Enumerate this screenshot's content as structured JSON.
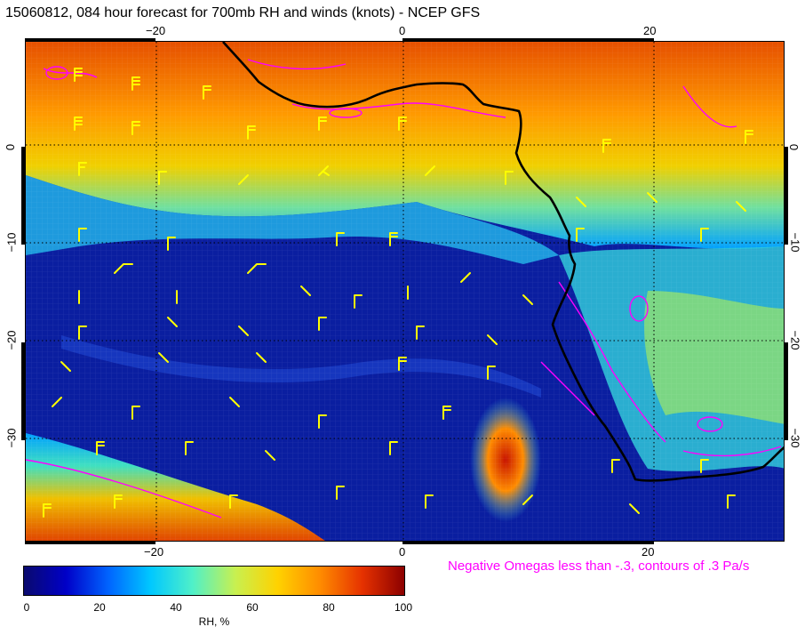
{
  "title": "15060812, 084 hour forecast for 700mb RH and winds (knots) - NCEP GFS",
  "map": {
    "lon_ticks_top": [
      "−20",
      "0",
      "20"
    ],
    "lon_ticks_bottom": [
      "−20",
      "0",
      "20"
    ],
    "lat_ticks_left": [
      "0",
      "−10",
      "−20",
      "−30"
    ],
    "lat_ticks_right": [
      "0",
      "−10",
      "−20",
      "−30"
    ],
    "field": "700mb relative humidity",
    "overlays": [
      "wind barbs (knots)",
      "omega contours",
      "coastline"
    ],
    "colors": {
      "barbs": "#ffff00",
      "omega_contours": "#ff00ff",
      "coastline": "#000000",
      "grid": "#000000"
    }
  },
  "omega_note": "Negative Omegas less than -.3, contours of .3 Pa/s",
  "colorbar": {
    "labels": [
      "0",
      "20",
      "40",
      "60",
      "80",
      "100"
    ],
    "title": "RH, %",
    "min": 0,
    "max": 100,
    "colors": [
      "#0a0a6e",
      "#0000c8",
      "#0064ff",
      "#00c8ff",
      "#50f0c8",
      "#c8f050",
      "#ffd200",
      "#ff8c00",
      "#e63200",
      "#8c0000"
    ]
  }
}
